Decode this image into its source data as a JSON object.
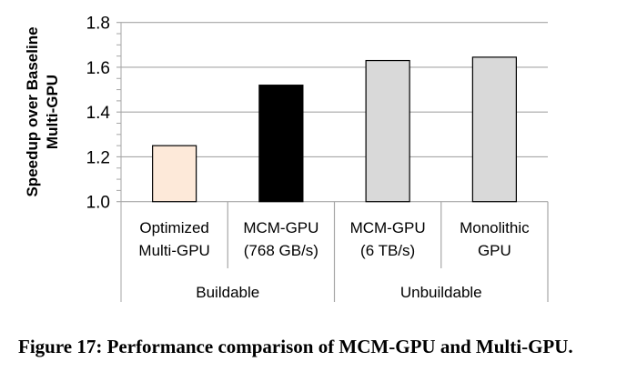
{
  "chart_data": {
    "type": "bar",
    "title": "",
    "xlabel": "",
    "ylabel": "Speedup over Baseline Multi-GPU",
    "ylabel_lines": [
      "Speedup over Baseline",
      "Multi-GPU"
    ],
    "ylim": [
      1.0,
      1.8
    ],
    "yticks": [
      "1.0",
      "1.2",
      "1.4",
      "1.6",
      "1.8"
    ],
    "grid": true,
    "categories": [
      {
        "lines": [
          "Optimized",
          "Multi-GPU"
        ],
        "group": "Buildable"
      },
      {
        "lines": [
          "MCM-GPU",
          "(768 GB/s)"
        ],
        "group": "Buildable"
      },
      {
        "lines": [
          "MCM-GPU",
          "(6 TB/s)"
        ],
        "group": "Unbuildable"
      },
      {
        "lines": [
          "Monolithic",
          "GPU"
        ],
        "group": "Unbuildable"
      }
    ],
    "groups": [
      "Buildable",
      "Unbuildable"
    ],
    "values": [
      1.25,
      1.52,
      1.63,
      1.645
    ],
    "colors": [
      "#fde9d9",
      "#000000",
      "#d9d9d9",
      "#d9d9d9"
    ]
  },
  "caption": "Figure 17: Performance comparison of MCM-GPU and Multi-GPU."
}
